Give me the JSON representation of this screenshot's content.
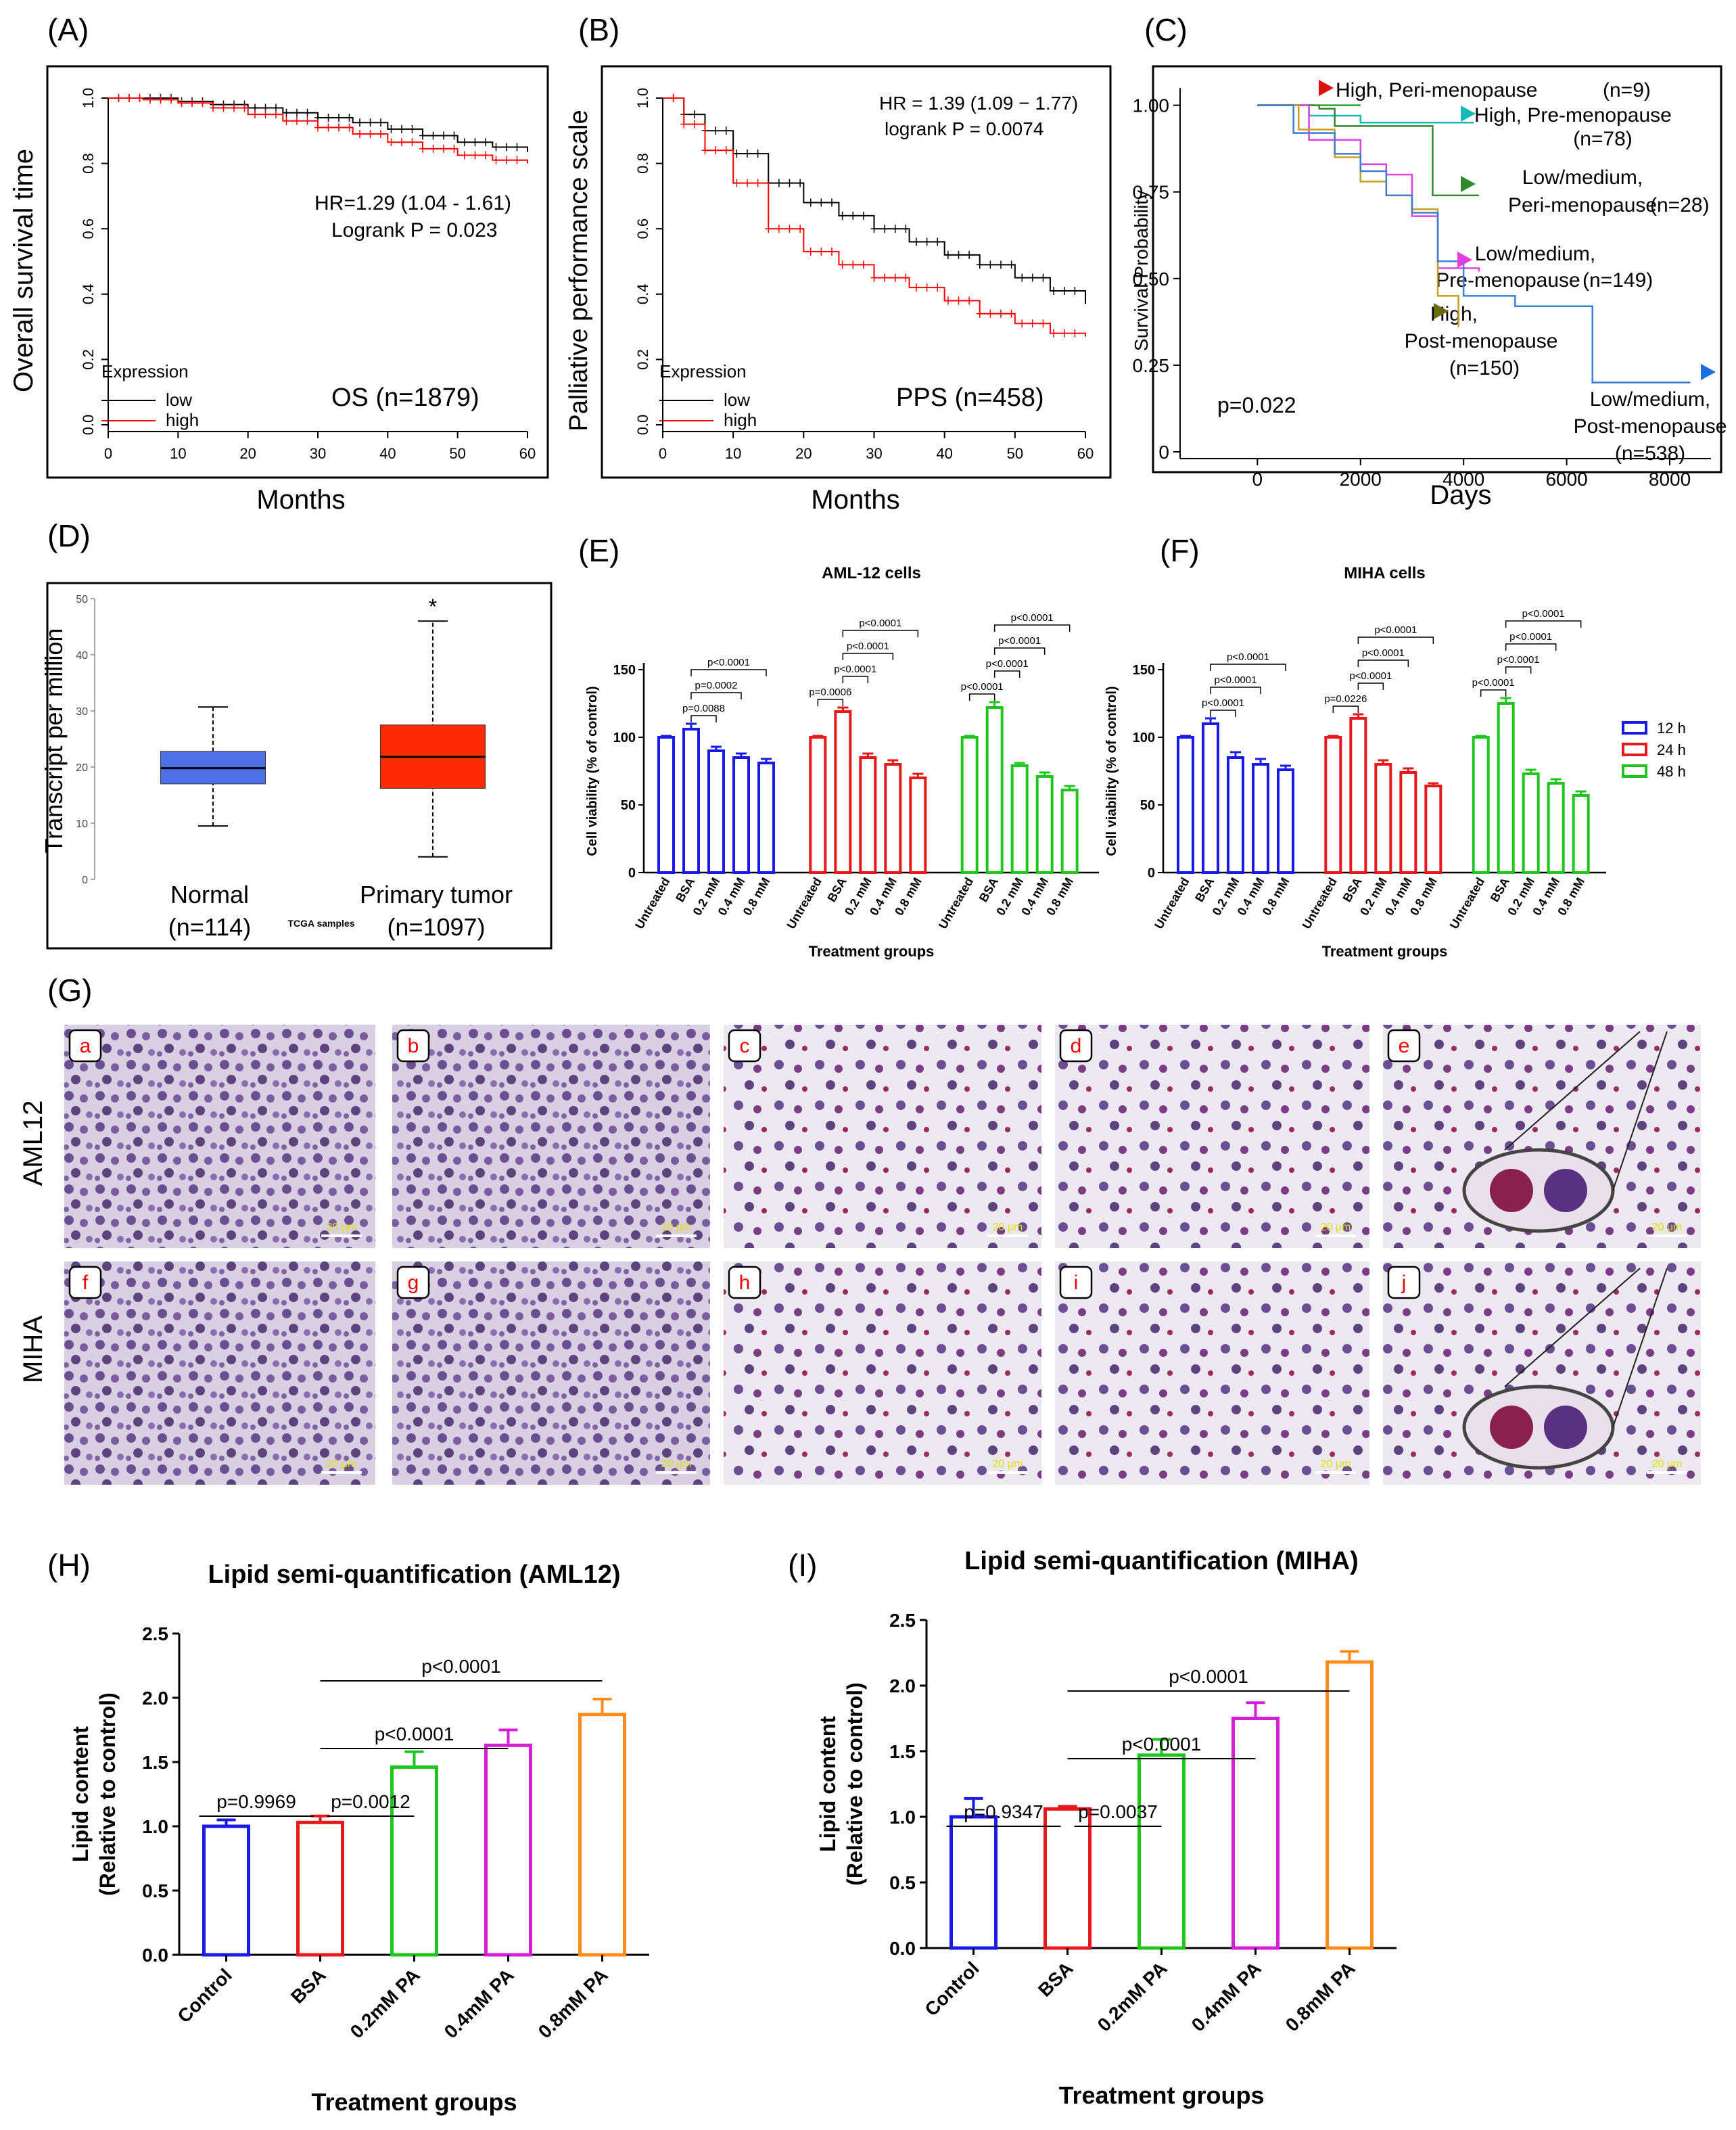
{
  "panel_letters": {
    "A": "(A)",
    "B": "(B)",
    "C": "(C)",
    "D": "(D)",
    "E": "(E)",
    "F": "(F)",
    "G": "(G)",
    "H": "(H)",
    "I": "(I)"
  },
  "chart_data": [
    {
      "id": "A",
      "type": "line",
      "ylabel": "Overall survival time",
      "xlabel": "Months",
      "x_ticks": [
        0,
        10,
        20,
        30,
        40,
        50,
        60
      ],
      "y_ticks": [
        "0.0",
        "0.2",
        "0.4",
        "0.6",
        "0.8",
        "1.0"
      ],
      "xlim": [
        0,
        60
      ],
      "ylim": [
        0,
        1
      ],
      "annotations": [
        "HR=1.29 (1.04 - 1.61)",
        "Logrank P = 0.023",
        "OS (n=1879)"
      ],
      "legend_title": "Expression",
      "series": [
        {
          "name": "low",
          "color": "#000000",
          "x": [
            0,
            5,
            10,
            15,
            20,
            25,
            30,
            35,
            40,
            45,
            50,
            55,
            60
          ],
          "y": [
            1.0,
            1.0,
            0.99,
            0.98,
            0.97,
            0.955,
            0.94,
            0.925,
            0.905,
            0.885,
            0.865,
            0.85,
            0.835
          ]
        },
        {
          "name": "high",
          "color": "#ff0000",
          "x": [
            0,
            5,
            10,
            15,
            20,
            25,
            30,
            35,
            40,
            45,
            50,
            55,
            60
          ],
          "y": [
            1.0,
            0.995,
            0.985,
            0.97,
            0.95,
            0.93,
            0.91,
            0.89,
            0.865,
            0.845,
            0.825,
            0.81,
            0.8
          ]
        }
      ]
    },
    {
      "id": "B",
      "type": "line",
      "ylabel": "Palliative performance scale",
      "xlabel": "Months",
      "x_ticks": [
        0,
        10,
        20,
        30,
        40,
        50,
        60
      ],
      "y_ticks": [
        "0.0",
        "0.2",
        "0.4",
        "0.6",
        "0.8",
        "1.0"
      ],
      "xlim": [
        0,
        60
      ],
      "ylim": [
        0,
        1
      ],
      "annotations": [
        "HR = 1.39 (1.09 − 1.77)",
        "logrank P = 0.0074",
        "PPS (n=458)"
      ],
      "legend_title": "Expression",
      "series": [
        {
          "name": "low",
          "color": "#000000",
          "x": [
            0,
            3,
            6,
            10,
            15,
            20,
            25,
            30,
            35,
            40,
            45,
            50,
            55,
            60
          ],
          "y": [
            1.0,
            0.95,
            0.9,
            0.83,
            0.74,
            0.68,
            0.64,
            0.6,
            0.56,
            0.52,
            0.49,
            0.45,
            0.41,
            0.37
          ]
        },
        {
          "name": "high",
          "color": "#ff0000",
          "x": [
            0,
            3,
            6,
            10,
            15,
            20,
            25,
            30,
            35,
            40,
            45,
            50,
            55,
            60
          ],
          "y": [
            1.0,
            0.92,
            0.84,
            0.74,
            0.6,
            0.53,
            0.49,
            0.45,
            0.42,
            0.38,
            0.34,
            0.31,
            0.28,
            0.27
          ]
        }
      ]
    },
    {
      "id": "C",
      "type": "line",
      "ylabel": "Survival Probability",
      "xlabel": "Days",
      "x_ticks": [
        0,
        2000,
        4000,
        6000,
        8000
      ],
      "y_ticks": [
        "0",
        "0.25",
        "0.50",
        "0.75",
        "1.00"
      ],
      "xlim": [
        -1500,
        8800
      ],
      "ylim": [
        0,
        1.05
      ],
      "p_value": "p=0.022",
      "series": [
        {
          "name": "High, Peri-menopause",
          "count": "(n=9)",
          "color": "#2aa12a",
          "x": [
            0,
            800,
            1500,
            2000
          ],
          "y": [
            1.0,
            1.0,
            1.0,
            1.0
          ]
        },
        {
          "name": "High, Pre-menopause",
          "count": "(n=78)",
          "color": "#18b8b8",
          "x": [
            0,
            1000,
            2000,
            3000,
            4000,
            4200
          ],
          "y": [
            1.0,
            0.97,
            0.95,
            0.95,
            0.95,
            0.95
          ]
        },
        {
          "name": "Low/medium, Peri-menopause",
          "count": "(n=28)",
          "color": "#2e8b2e",
          "x": [
            0,
            1200,
            1500,
            3300,
            3400,
            4300
          ],
          "y": [
            1.0,
            0.99,
            0.94,
            0.94,
            0.74,
            0.74
          ]
        },
        {
          "name": "Low/medium, Pre-menopause",
          "count": "(n=149)",
          "color": "#e040e0",
          "x": [
            0,
            1000,
            2000,
            2500,
            3000,
            3500,
            4300
          ],
          "y": [
            1.0,
            0.9,
            0.83,
            0.8,
            0.68,
            0.53,
            0.52
          ]
        },
        {
          "name": "High, Post-menopause",
          "count": "(n=150)",
          "color": "#c8a020",
          "x": [
            0,
            800,
            1500,
            2000,
            2500,
            3000,
            3500,
            3900
          ],
          "y": [
            1.0,
            0.93,
            0.85,
            0.78,
            0.74,
            0.7,
            0.45,
            0.36
          ]
        },
        {
          "name": "Low/medium, Post-menopause",
          "count": "(n=538)",
          "color": "#3a7fd5",
          "x": [
            0,
            700,
            1500,
            2000,
            2500,
            3000,
            3500,
            4000,
            5000,
            6500,
            8400
          ],
          "y": [
            1.0,
            0.92,
            0.86,
            0.81,
            0.74,
            0.69,
            0.55,
            0.45,
            0.42,
            0.2,
            0.2
          ]
        }
      ]
    },
    {
      "id": "D",
      "type": "box",
      "ylabel": "Transcript per million",
      "xlabel": "TCGA samples",
      "y_ticks": [
        0,
        10,
        20,
        30,
        40,
        50
      ],
      "ylim": [
        0,
        50
      ],
      "categories": [
        "Normal",
        "Primary tumor"
      ],
      "counts": [
        "(n=114)",
        "(n=1097)"
      ],
      "significance": "*",
      "boxes": [
        {
          "name": "Normal",
          "color": "#4d6fe8",
          "whisker_low": 9.5,
          "q1": 17,
          "median": 19.8,
          "q3": 22.8,
          "whisker_high": 30.7
        },
        {
          "name": "Primary tumor",
          "color": "#ff2a00",
          "whisker_low": 4,
          "q1": 16.2,
          "median": 21.8,
          "q3": 27.5,
          "whisker_high": 46
        }
      ]
    },
    {
      "id": "E",
      "type": "bar",
      "title": "AML-12 cells",
      "ylabel": "Cell viability (% of control)",
      "xlabel": "Treatment groups",
      "y_ticks": [
        0,
        50,
        100,
        150
      ],
      "ylim": [
        0,
        150
      ],
      "categories": [
        "Untreated",
        "BSA",
        "0.2 mM",
        "0.4 mM",
        "0.8 mM"
      ],
      "series": [
        {
          "name": "12 h",
          "color": "#1a1ae6",
          "values": [
            100,
            106,
            90,
            85,
            81
          ],
          "errors": [
            1,
            4,
            3,
            3,
            3
          ]
        },
        {
          "name": "24 h",
          "color": "#e6191a",
          "values": [
            100,
            119,
            85,
            80,
            70
          ],
          "errors": [
            1,
            3,
            3,
            3,
            3
          ]
        },
        {
          "name": "48 h",
          "color": "#1ec61e",
          "values": [
            100,
            122,
            79,
            71,
            61
          ],
          "errors": [
            1,
            4,
            2,
            3,
            3
          ]
        }
      ],
      "comparisons": [
        [
          "p=0.0088",
          "p=0.0002",
          "p<0.0001"
        ],
        [
          "p=0.0006",
          "p<0.0001",
          "p<0.0001",
          "p<0.0001"
        ],
        [
          "p<0.0001",
          "p<0.0001",
          "p<0.0001",
          "p<0.0001"
        ]
      ]
    },
    {
      "id": "F",
      "type": "bar",
      "title": "MIHA cells",
      "ylabel": "Cell viability (% of control)",
      "xlabel": "Treatment groups",
      "y_ticks": [
        0,
        50,
        100,
        150
      ],
      "ylim": [
        0,
        150
      ],
      "categories": [
        "Untreated",
        "BSA",
        "0.2 mM",
        "0.4 mM",
        "0.8 mM"
      ],
      "series": [
        {
          "name": "12 h",
          "color": "#1a1ae6",
          "values": [
            100,
            110,
            85,
            80,
            76
          ],
          "errors": [
            1,
            4,
            4,
            4,
            3
          ]
        },
        {
          "name": "24 h",
          "color": "#e6191a",
          "values": [
            100,
            114,
            80,
            74,
            64
          ],
          "errors": [
            1,
            3,
            3,
            3,
            2
          ]
        },
        {
          "name": "48 h",
          "color": "#1ec61e",
          "values": [
            100,
            125,
            73,
            66,
            57
          ],
          "errors": [
            1,
            4,
            3,
            3,
            3
          ]
        }
      ],
      "comparisons": [
        [
          "p<0.0001",
          "p<0.0001",
          "p<0.0001"
        ],
        [
          "p=0.0226",
          "p<0.0001",
          "p<0.0001",
          "p<0.0001"
        ],
        [
          "p<0.0001",
          "p<0.0001",
          "p<0.0001",
          "p<0.0001"
        ]
      ]
    },
    {
      "id": "H",
      "type": "bar",
      "title": "Lipid semi-quantification (AML12)",
      "ylabel": "Lipid content",
      "ylabel2": "(Relative to control)",
      "xlabel": "Treatment groups",
      "y_ticks": [
        "0.0",
        "0.5",
        "1.0",
        "1.5",
        "2.0",
        "2.5"
      ],
      "ylim": [
        0,
        2.5
      ],
      "categories": [
        "Control",
        "BSA",
        "0.2mM PA",
        "0.4mM PA",
        "0.8mM PA"
      ],
      "colors": [
        "#1a1ae6",
        "#e6191a",
        "#1ec61e",
        "#d61ed6",
        "#ff8c1a"
      ],
      "values": [
        1.0,
        1.03,
        1.46,
        1.63,
        1.87
      ],
      "errors": [
        0.05,
        0.05,
        0.12,
        0.12,
        0.12
      ],
      "comparisons": [
        "p=0.9969",
        "p=0.0012",
        "p<0.0001",
        "p<0.0001"
      ]
    },
    {
      "id": "I",
      "type": "bar",
      "title": "Lipid semi-quantification (MIHA)",
      "ylabel": "Lipid content",
      "ylabel2": "(Relative to control)",
      "xlabel": "Treatment groups",
      "y_ticks": [
        "0.0",
        "0.5",
        "1.0",
        "1.5",
        "2.0",
        "2.5"
      ],
      "ylim": [
        0,
        2.5
      ],
      "categories": [
        "Control",
        "BSA",
        "0.2mM PA",
        "0.4mM PA",
        "0.8mM PA"
      ],
      "colors": [
        "#1a1ae6",
        "#e6191a",
        "#1ec61e",
        "#d61ed6",
        "#ff8c1a"
      ],
      "values": [
        1.0,
        1.06,
        1.47,
        1.75,
        2.18
      ],
      "errors": [
        0.14,
        0.02,
        0.12,
        0.12,
        0.08
      ],
      "comparisons": [
        "p=0.9347",
        "p=0.0037",
        "p<0.0001",
        "p<0.0001"
      ]
    }
  ],
  "micrographs": {
    "row_labels": [
      "AML12",
      "MIHA"
    ],
    "scale_bar": "20 μm",
    "tiles": [
      "a",
      "b",
      "c",
      "d",
      "e",
      "f",
      "g",
      "h",
      "i",
      "j"
    ]
  },
  "legend_hours": [
    "12 h",
    "24 h",
    "48 h"
  ]
}
